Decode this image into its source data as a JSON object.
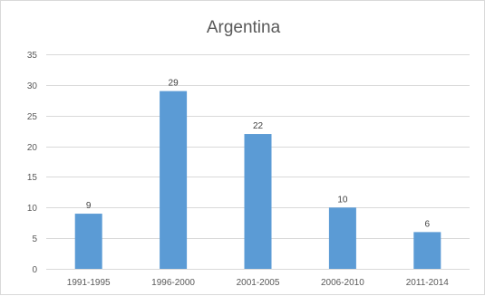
{
  "chart_data": {
    "type": "bar",
    "title": "Argentina",
    "categories": [
      "1991-1995",
      "1996-2000",
      "2001-2005",
      "2006-2010",
      "2011-2014"
    ],
    "values": [
      9,
      29,
      22,
      10,
      6
    ],
    "data_labels": [
      "9",
      "29",
      "22",
      "10",
      "6"
    ],
    "y_ticks": [
      "0",
      "5",
      "10",
      "15",
      "20",
      "25",
      "30",
      "35"
    ],
    "ylim": [
      0,
      35
    ],
    "grid": true,
    "bar_color": "#5b9bd5",
    "grid_color": "#d9d9d9",
    "xlabel": "",
    "ylabel": ""
  }
}
